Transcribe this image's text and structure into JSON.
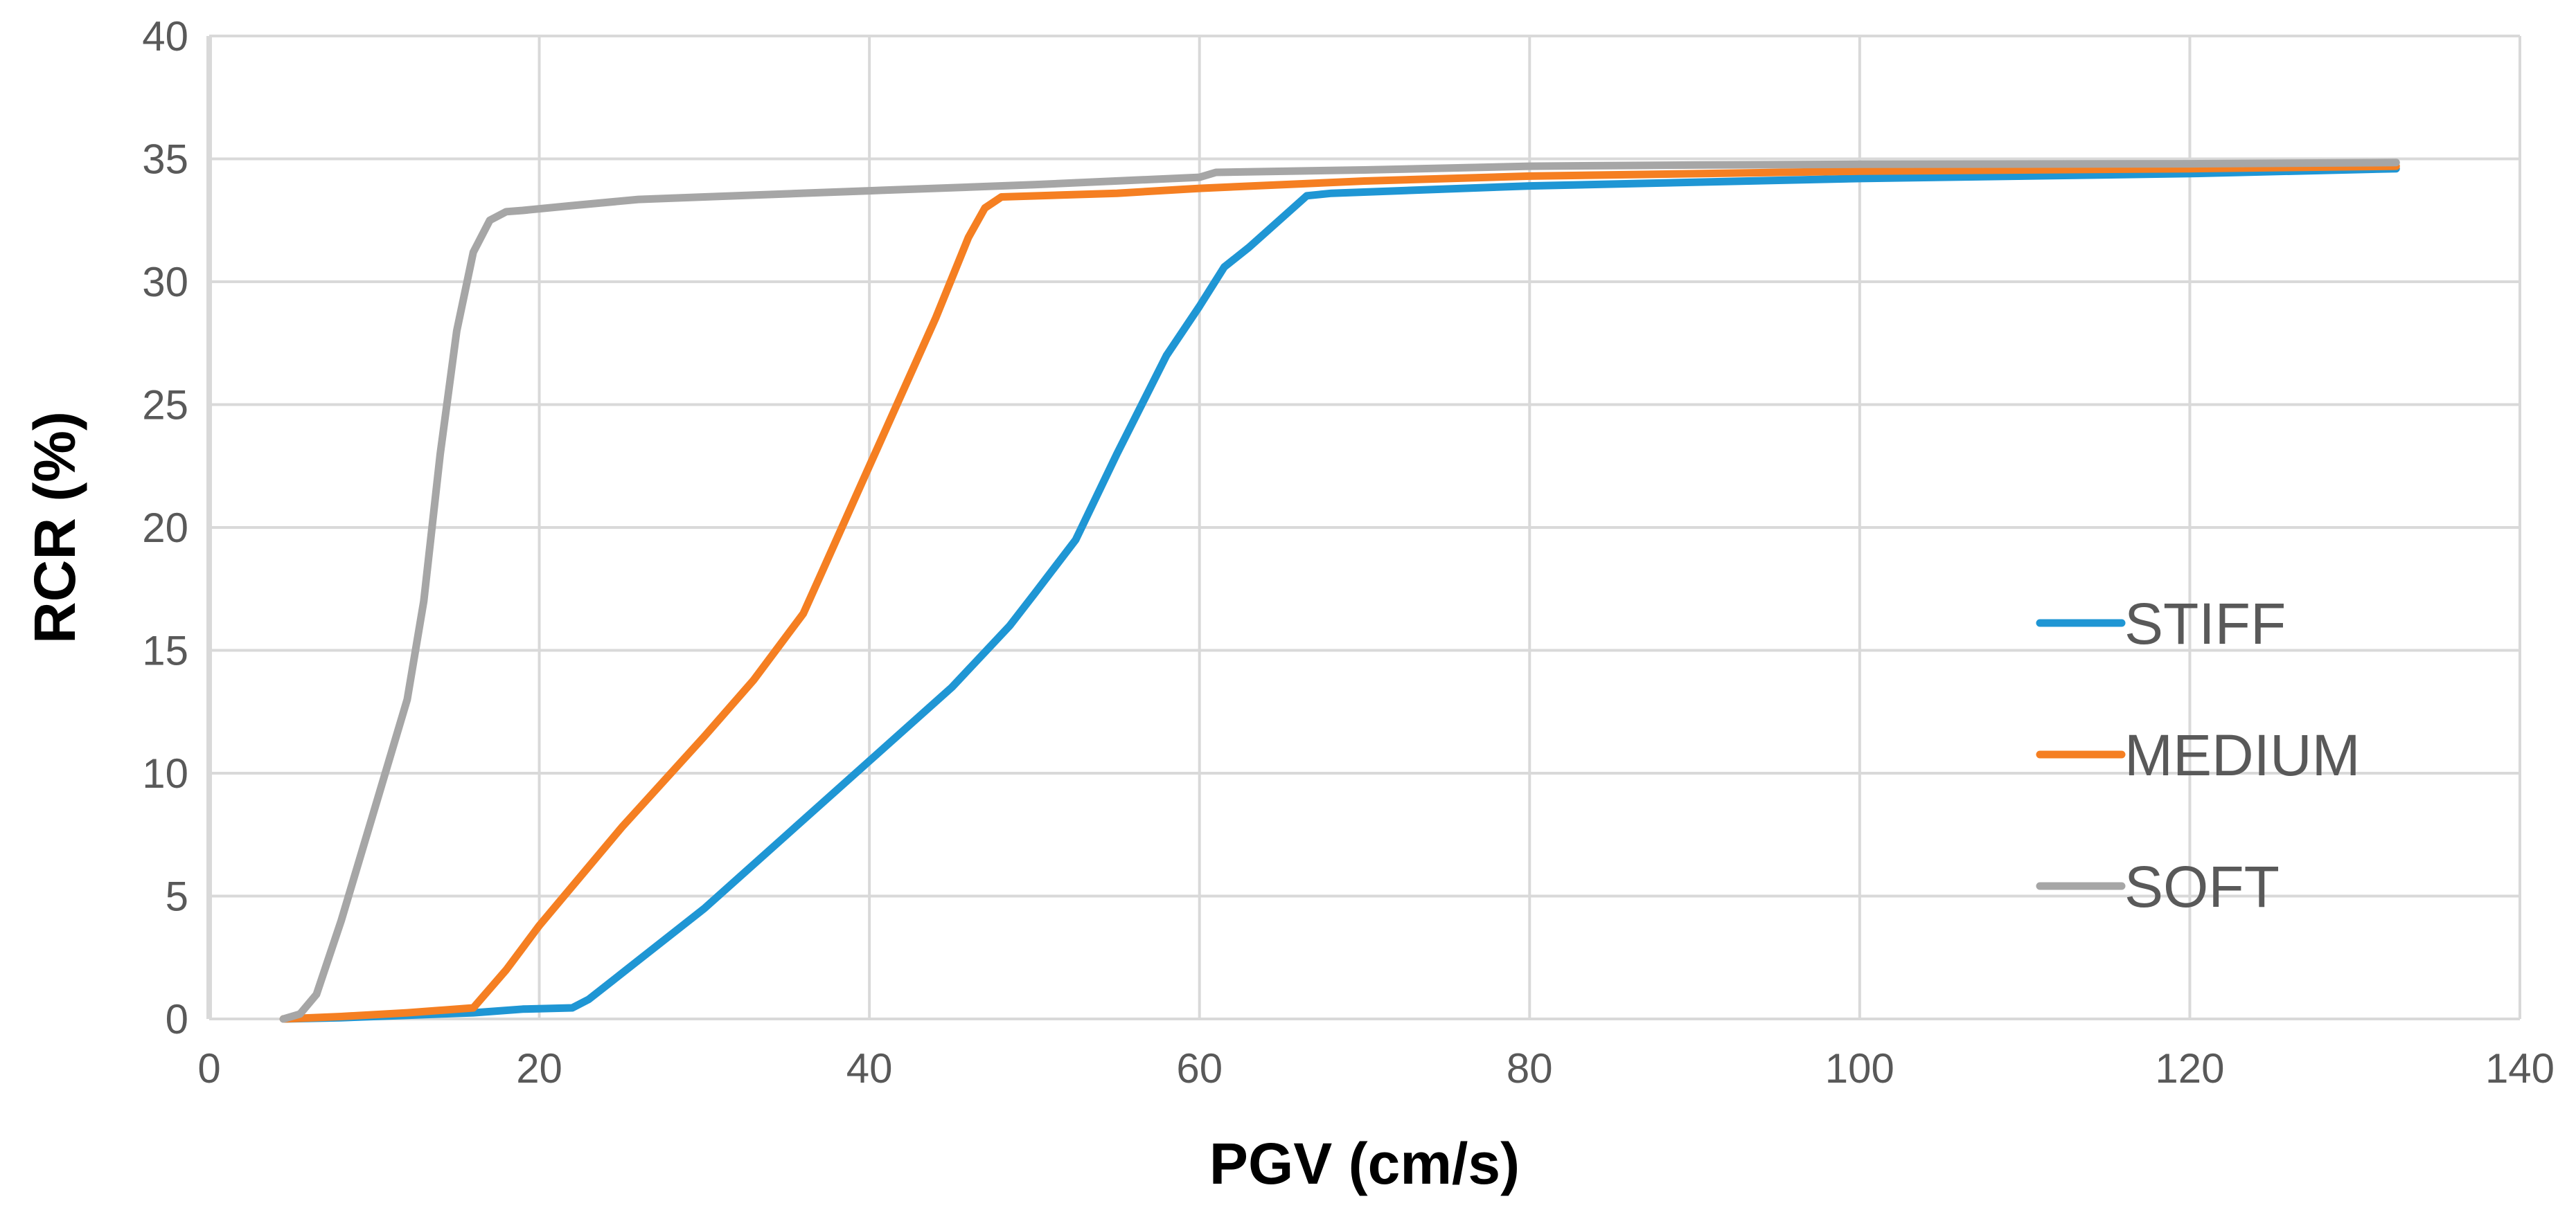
{
  "chart_data": {
    "type": "line",
    "title": "",
    "xlabel": "PGV (cm/s)",
    "ylabel": "RCR (%)",
    "xlim": [
      0,
      140
    ],
    "ylim": [
      0,
      40
    ],
    "x_ticks": [
      0,
      20,
      40,
      60,
      80,
      100,
      120,
      140
    ],
    "y_ticks": [
      0,
      5,
      10,
      15,
      20,
      25,
      30,
      35,
      40
    ],
    "x_tick_labels": [
      "0",
      "20",
      "40",
      "60",
      "80",
      "100",
      "120",
      "140"
    ],
    "y_tick_labels": [
      "0",
      "5",
      "10",
      "15",
      "20",
      "25",
      "30",
      "35",
      "40"
    ],
    "grid": true,
    "legend_position": "right",
    "series": [
      {
        "name": "STIFF",
        "color": "#1F96D4",
        "points": [
          [
            4.5,
            0
          ],
          [
            8,
            0.05
          ],
          [
            12,
            0.15
          ],
          [
            16,
            0.25
          ],
          [
            19,
            0.4
          ],
          [
            22,
            0.45
          ],
          [
            23,
            0.8
          ],
          [
            30,
            4.5
          ],
          [
            35,
            7.5
          ],
          [
            40,
            10.5
          ],
          [
            45,
            13.5
          ],
          [
            48.5,
            16
          ],
          [
            50,
            17.3
          ],
          [
            52.5,
            19.5
          ],
          [
            55,
            23
          ],
          [
            58,
            27
          ],
          [
            60,
            29
          ],
          [
            61.5,
            30.6
          ],
          [
            63,
            31.4
          ],
          [
            66.5,
            33.5
          ],
          [
            68,
            33.6
          ],
          [
            80,
            33.9
          ],
          [
            100,
            34.2
          ],
          [
            120,
            34.4
          ],
          [
            132.5,
            34.6
          ]
        ]
      },
      {
        "name": "MEDIUM",
        "color": "#F57F22",
        "points": [
          [
            4.5,
            0
          ],
          [
            8,
            0.1
          ],
          [
            12,
            0.25
          ],
          [
            16,
            0.45
          ],
          [
            18,
            2
          ],
          [
            20,
            3.8
          ],
          [
            25,
            7.8
          ],
          [
            30,
            11.5
          ],
          [
            33,
            13.8
          ],
          [
            36,
            16.5
          ],
          [
            37,
            18
          ],
          [
            40,
            22.5
          ],
          [
            42,
            25.5
          ],
          [
            44,
            28.5
          ],
          [
            46,
            31.8
          ],
          [
            47,
            33
          ],
          [
            48,
            33.45
          ],
          [
            55,
            33.6
          ],
          [
            60,
            33.8
          ],
          [
            70,
            34.1
          ],
          [
            80,
            34.3
          ],
          [
            100,
            34.5
          ],
          [
            120,
            34.6
          ],
          [
            132.5,
            34.7
          ]
        ]
      },
      {
        "name": "SOFT",
        "color": "#A6A6A6",
        "points": [
          [
            4.5,
            0
          ],
          [
            5.5,
            0.2
          ],
          [
            6.5,
            1
          ],
          [
            8,
            4
          ],
          [
            10,
            8.5
          ],
          [
            12,
            13
          ],
          [
            13,
            17
          ],
          [
            14,
            23
          ],
          [
            15,
            28
          ],
          [
            16,
            31.2
          ],
          [
            17,
            32.5
          ],
          [
            18,
            32.85
          ],
          [
            19,
            32.9
          ],
          [
            22,
            33.1
          ],
          [
            26,
            33.35
          ],
          [
            30,
            33.45
          ],
          [
            40,
            33.7
          ],
          [
            50,
            33.95
          ],
          [
            60,
            34.25
          ],
          [
            61,
            34.45
          ],
          [
            70,
            34.55
          ],
          [
            80,
            34.7
          ],
          [
            90,
            34.75
          ],
          [
            100,
            34.78
          ],
          [
            120,
            34.8
          ],
          [
            132.5,
            34.85
          ]
        ]
      }
    ]
  }
}
